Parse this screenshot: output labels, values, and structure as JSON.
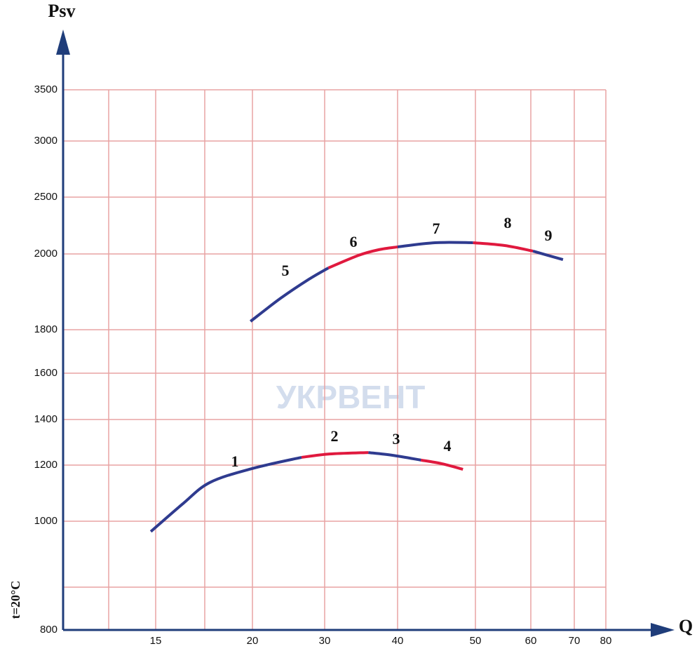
{
  "chart_data": {
    "type": "line",
    "y_label": "Psv",
    "x_label": "Q",
    "note": "t=20°C",
    "watermark": "УКРВЕНТ",
    "xticks": [
      15,
      20,
      30,
      40,
      50,
      60,
      70,
      80
    ],
    "yticks": [
      800,
      1000,
      1200,
      1400,
      1600,
      1800,
      2000,
      2500,
      3000,
      3500
    ],
    "xlim": [
      14.75,
      80
    ],
    "ylim": [
      800,
      3500
    ],
    "grid": true,
    "series": [
      {
        "name": "1",
        "color": "#2f3b8f",
        "x": [
          14.75,
          16.4,
          17.8,
          20,
          26.8
        ],
        "values": [
          981,
          1062,
          1138,
          1188,
          1234
        ]
      },
      {
        "name": "2",
        "color": "#e0193e",
        "x": [
          26.8,
          30.7,
          36
        ],
        "values": [
          1234,
          1249,
          1255
        ]
      },
      {
        "name": "3",
        "color": "#2f3b8f",
        "x": [
          36,
          39.3,
          43
        ],
        "values": [
          1255,
          1243,
          1222
        ]
      },
      {
        "name": "4",
        "color": "#e0193e",
        "x": [
          43,
          45.7,
          48.4
        ],
        "values": [
          1222,
          1206,
          1185
        ]
      },
      {
        "name": "5",
        "color": "#2f3b8f",
        "x": [
          19.9,
          23.9,
          27.8,
          30.5
        ],
        "values": [
          1822,
          1883,
          1933,
          1963
        ]
      },
      {
        "name": "6",
        "color": "#e0193e",
        "x": [
          30.5,
          34.6,
          37.4,
          40
        ],
        "values": [
          1963,
          1996,
          2037,
          2062
        ]
      },
      {
        "name": "7",
        "color": "#2f3b8f",
        "x": [
          40,
          44.8,
          49.7
        ],
        "values": [
          2062,
          2099,
          2099
        ]
      },
      {
        "name": "8",
        "color": "#e0193e",
        "x": [
          49.7,
          55.3,
          60.5
        ],
        "values": [
          2099,
          2074,
          2025
        ]
      },
      {
        "name": "9",
        "color": "#2f3b8f",
        "x": [
          60.5,
          67.4
        ],
        "values": [
          2025,
          1985
        ]
      }
    ]
  }
}
